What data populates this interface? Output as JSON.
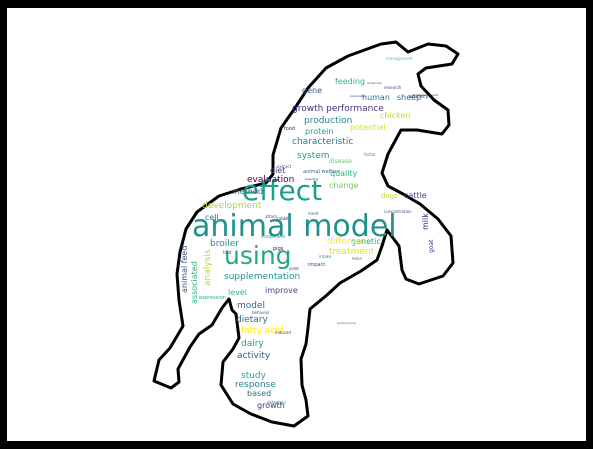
{
  "colors": {
    "background": "#000000",
    "canvas": "#ffffff",
    "silhouette_outline": "#000000"
  },
  "silhouette": "rearing horse",
  "words": [
    {
      "text": "animal model",
      "color": "#21918c"
    },
    {
      "text": "effect",
      "color": "#1f9e89"
    },
    {
      "text": "using",
      "color": "#26a784"
    },
    {
      "text": "growth performance",
      "color": "#46327e"
    },
    {
      "text": "feeding",
      "color": "#35b779"
    },
    {
      "text": "gene",
      "color": "#3b528b"
    },
    {
      "text": "human",
      "color": "#2c728e"
    },
    {
      "text": "sheep",
      "color": "#31688e"
    },
    {
      "text": "production",
      "color": "#25858e"
    },
    {
      "text": "protein",
      "color": "#20a486"
    },
    {
      "text": "potential",
      "color": "#d8e219"
    },
    {
      "text": "chicken",
      "color": "#bddf26"
    },
    {
      "text": "characteristic",
      "color": "#2a788e"
    },
    {
      "text": "system",
      "color": "#1fa187"
    },
    {
      "text": "disease",
      "color": "#5ec962"
    },
    {
      "text": "diet",
      "color": "#443983"
    },
    {
      "text": "quality",
      "color": "#2db27d"
    },
    {
      "text": "evaluation",
      "color": "#440154"
    },
    {
      "text": "change",
      "color": "#6ece58"
    },
    {
      "text": "method",
      "color": "#31688e"
    },
    {
      "text": "dogs",
      "color": "#c2df23"
    },
    {
      "text": "cattle",
      "color": "#3e4989"
    },
    {
      "text": "development",
      "color": "#a5db36"
    },
    {
      "text": "milk",
      "color": "#482576"
    },
    {
      "text": "cell",
      "color": "#2a788e"
    },
    {
      "text": "genetic",
      "color": "#22a884"
    },
    {
      "text": "broiler",
      "color": "#23898e"
    },
    {
      "text": "different",
      "color": "#fde725"
    },
    {
      "text": "treatment",
      "color": "#e2e418"
    },
    {
      "text": "animal feed",
      "color": "#3b528b"
    },
    {
      "text": "associated",
      "color": "#27ad81"
    },
    {
      "text": "analysis",
      "color": "#b5de2b"
    },
    {
      "text": "supplementation",
      "color": "#1f968b"
    },
    {
      "text": "improve",
      "color": "#3e4a89"
    },
    {
      "text": "level",
      "color": "#35b779"
    },
    {
      "text": "model",
      "color": "#33638d"
    },
    {
      "text": "dietary",
      "color": "#2c718e"
    },
    {
      "text": "fatty acid",
      "color": "#fde725"
    },
    {
      "text": "dairy",
      "color": "#1fa088"
    },
    {
      "text": "activity",
      "color": "#39558c"
    },
    {
      "text": "response",
      "color": "#26818e"
    },
    {
      "text": "study",
      "color": "#25ab82"
    },
    {
      "text": "based",
      "color": "#2d708e"
    },
    {
      "text": "growth",
      "color": "#472d7b"
    },
    {
      "text": "goat",
      "color": "#482878"
    },
    {
      "text": "efficacy",
      "color": "#3b528b"
    },
    {
      "text": "research",
      "color": "#414487"
    },
    {
      "text": "management",
      "color": "#5ec962"
    },
    {
      "text": "food",
      "color": "#482576"
    },
    {
      "text": "animal welfare",
      "color": "#31688e"
    },
    {
      "text": "concentration",
      "color": "#3b528b"
    },
    {
      "text": "expression",
      "color": "#27ad81"
    },
    {
      "text": "impact",
      "color": "#3e4989"
    },
    {
      "text": "detection",
      "color": "#2a788e"
    },
    {
      "text": "trait",
      "color": "#482878"
    },
    {
      "text": "pigs",
      "color": "#440154"
    },
    {
      "text": "rabbit",
      "color": "#46337e"
    },
    {
      "text": "extract",
      "color": "#33638d"
    },
    {
      "text": "performance",
      "color": "#2c728e"
    },
    {
      "text": "composition",
      "color": "#1f9e89"
    },
    {
      "text": "attack",
      "color": "#3b528b"
    },
    {
      "text": "yield",
      "color": "#46327e"
    },
    {
      "text": "mice",
      "color": "#3b528b"
    },
    {
      "text": "factor",
      "color": "#238a8d"
    },
    {
      "text": "induced",
      "color": "#443983"
    },
    {
      "text": "breeding",
      "color": "#482475"
    },
    {
      "text": "meat",
      "color": "#2d708e"
    },
    {
      "text": "parameter",
      "color": "#46327e"
    },
    {
      "text": "behavior",
      "color": "#3b528b"
    },
    {
      "text": "intake",
      "color": "#21918c"
    },
    {
      "text": "measurement",
      "color": "#440154"
    },
    {
      "text": "molecular",
      "color": "#414487"
    }
  ]
}
